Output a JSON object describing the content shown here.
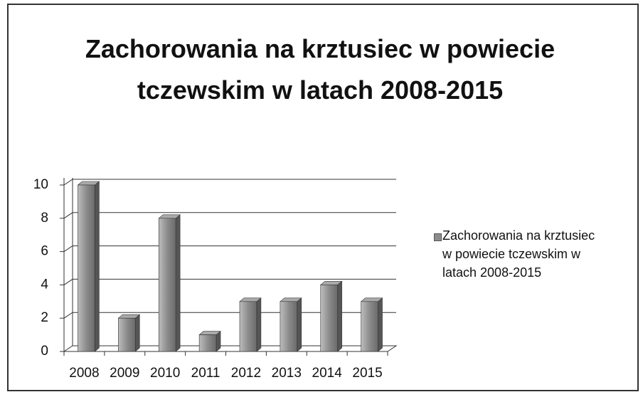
{
  "chart_data": {
    "type": "bar3d",
    "title": "Zachorowania na krztusiec w powiecie tczewskim w latach 2008-2015",
    "categories": [
      "2008",
      "2009",
      "2010",
      "2011",
      "2012",
      "2013",
      "2014",
      "2015"
    ],
    "series": [
      {
        "name": "Zachorowania na krztusiec w powiecie tczewskim w latach 2008-2015",
        "color": "#8c8c8c",
        "values": [
          10,
          2,
          8,
          1,
          3,
          3,
          4,
          3
        ]
      }
    ],
    "ylim": [
      0,
      10
    ],
    "yticks": [
      0,
      2,
      4,
      6,
      8,
      10
    ],
    "grid": true,
    "legend": "right"
  }
}
